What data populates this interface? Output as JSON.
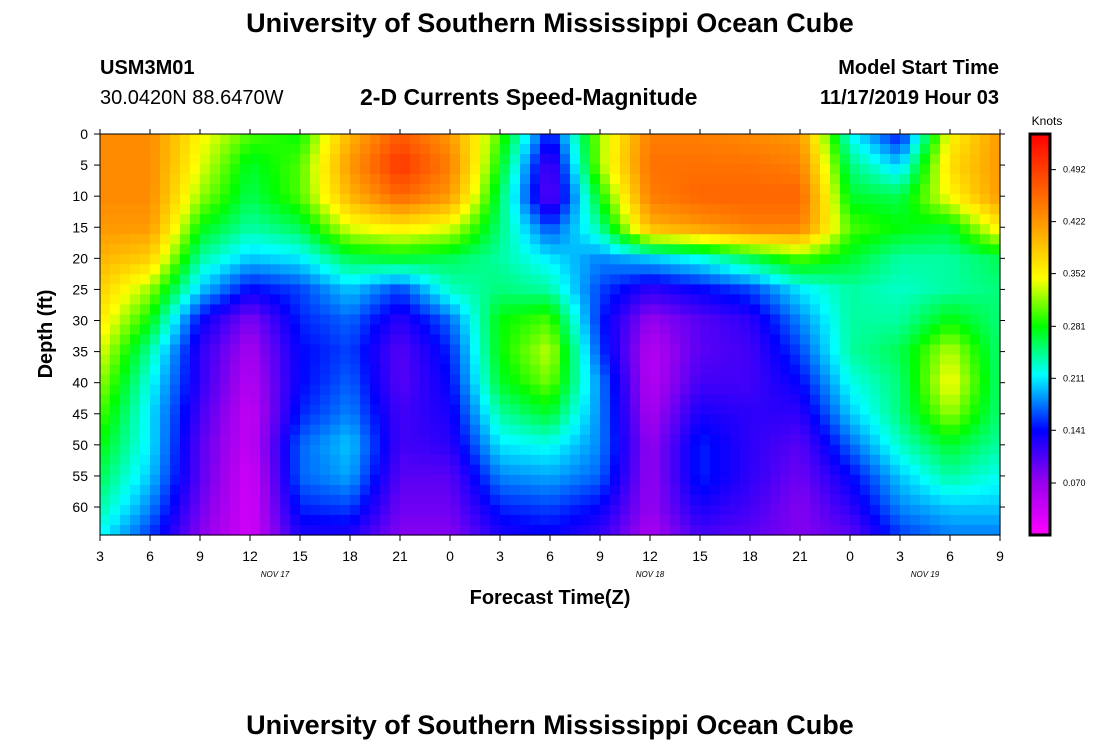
{
  "header": {
    "title": "University of Southern Mississippi Ocean Cube",
    "station_id": "USM3M01",
    "coordinates": "30.0420N 88.6470W",
    "subtitle": "2-D Currents Speed-Magnitude",
    "model_start_label": "Model Start Time",
    "model_start_value": "11/17/2019 Hour 03"
  },
  "footer": {
    "title": "University of Southern Mississippi Ocean Cube"
  },
  "chart_data": {
    "type": "heatmap",
    "title": "2-D Currents Speed-Magnitude",
    "xlabel": "Forecast Time(Z)",
    "ylabel": "Depth (ft)",
    "x_tick_labels": [
      "3",
      "6",
      "9",
      "12",
      "15",
      "18",
      "21",
      "0",
      "3",
      "6",
      "9",
      "12",
      "15",
      "18",
      "21",
      "0",
      "3",
      "6",
      "9"
    ],
    "x_hours_since_start": [
      0,
      3,
      6,
      9,
      12,
      15,
      18,
      21,
      24,
      27,
      30,
      33,
      36,
      39,
      42,
      45,
      48,
      51,
      54
    ],
    "date_labels": [
      {
        "text": "NOV 17",
        "hour": 10.5
      },
      {
        "text": "NOV 18",
        "hour": 33
      },
      {
        "text": "NOV 19",
        "hour": 49.5
      }
    ],
    "y_ticks": [
      0,
      5,
      10,
      15,
      20,
      25,
      30,
      35,
      40,
      45,
      50,
      55,
      60
    ],
    "ylim": [
      0,
      64.5
    ],
    "xlim": [
      0,
      54
    ],
    "colorbar": {
      "unit": "Knots",
      "ticks": [
        "0.492",
        "0.422",
        "0.352",
        "0.281",
        "0.211",
        "0.141",
        "0.070"
      ],
      "tick_values": [
        0.492,
        0.422,
        0.352,
        0.281,
        0.211,
        0.141,
        0.07
      ],
      "range": [
        0.0,
        0.54
      ]
    },
    "speed_grid_knots": {
      "depths_ft": [
        0,
        5,
        10,
        15,
        20,
        25,
        30,
        35,
        40,
        45,
        50,
        55,
        60,
        64
      ],
      "hours": [
        0,
        3,
        6,
        9,
        12,
        15,
        18,
        21,
        24,
        27,
        30,
        33,
        36,
        39,
        42,
        45,
        48,
        51,
        54
      ],
      "rows": [
        [
          0.43,
          0.43,
          0.35,
          0.3,
          0.28,
          0.4,
          0.47,
          0.42,
          0.3,
          0.14,
          0.32,
          0.44,
          0.44,
          0.43,
          0.42,
          0.22,
          0.14,
          0.35,
          0.42
        ],
        [
          0.43,
          0.43,
          0.34,
          0.27,
          0.3,
          0.42,
          0.5,
          0.44,
          0.28,
          0.1,
          0.32,
          0.45,
          0.45,
          0.45,
          0.44,
          0.25,
          0.2,
          0.37,
          0.42
        ],
        [
          0.43,
          0.43,
          0.32,
          0.26,
          0.3,
          0.4,
          0.46,
          0.42,
          0.26,
          0.09,
          0.28,
          0.44,
          0.46,
          0.46,
          0.46,
          0.27,
          0.26,
          0.35,
          0.42
        ],
        [
          0.42,
          0.42,
          0.28,
          0.24,
          0.26,
          0.34,
          0.36,
          0.34,
          0.25,
          0.16,
          0.24,
          0.4,
          0.42,
          0.44,
          0.44,
          0.3,
          0.28,
          0.27,
          0.36
        ],
        [
          0.4,
          0.38,
          0.24,
          0.2,
          0.21,
          0.26,
          0.27,
          0.26,
          0.24,
          0.21,
          0.18,
          0.2,
          0.22,
          0.26,
          0.3,
          0.27,
          0.24,
          0.24,
          0.26
        ],
        [
          0.38,
          0.32,
          0.2,
          0.14,
          0.16,
          0.2,
          0.16,
          0.23,
          0.25,
          0.24,
          0.16,
          0.12,
          0.14,
          0.16,
          0.21,
          0.24,
          0.23,
          0.24,
          0.25
        ],
        [
          0.36,
          0.28,
          0.14,
          0.08,
          0.15,
          0.17,
          0.12,
          0.17,
          0.28,
          0.3,
          0.15,
          0.07,
          0.1,
          0.12,
          0.18,
          0.24,
          0.24,
          0.28,
          0.25
        ],
        [
          0.34,
          0.24,
          0.12,
          0.06,
          0.14,
          0.16,
          0.1,
          0.15,
          0.28,
          0.33,
          0.16,
          0.05,
          0.1,
          0.11,
          0.16,
          0.24,
          0.26,
          0.33,
          0.25
        ],
        [
          0.32,
          0.22,
          0.12,
          0.05,
          0.14,
          0.17,
          0.1,
          0.14,
          0.27,
          0.31,
          0.18,
          0.05,
          0.11,
          0.11,
          0.14,
          0.22,
          0.25,
          0.35,
          0.25
        ],
        [
          0.3,
          0.21,
          0.11,
          0.04,
          0.15,
          0.18,
          0.11,
          0.13,
          0.24,
          0.27,
          0.18,
          0.06,
          0.13,
          0.12,
          0.12,
          0.2,
          0.25,
          0.32,
          0.25
        ],
        [
          0.28,
          0.21,
          0.1,
          0.04,
          0.17,
          0.2,
          0.11,
          0.12,
          0.21,
          0.22,
          0.18,
          0.07,
          0.15,
          0.12,
          0.1,
          0.17,
          0.23,
          0.27,
          0.24
        ],
        [
          0.26,
          0.2,
          0.1,
          0.03,
          0.17,
          0.19,
          0.1,
          0.1,
          0.18,
          0.19,
          0.17,
          0.07,
          0.15,
          0.12,
          0.09,
          0.14,
          0.2,
          0.24,
          0.22
        ],
        [
          0.24,
          0.18,
          0.09,
          0.03,
          0.15,
          0.16,
          0.09,
          0.09,
          0.15,
          0.16,
          0.14,
          0.07,
          0.13,
          0.11,
          0.08,
          0.12,
          0.18,
          0.2,
          0.2
        ],
        [
          0.22,
          0.16,
          0.08,
          0.03,
          0.13,
          0.13,
          0.08,
          0.08,
          0.13,
          0.14,
          0.12,
          0.06,
          0.11,
          0.1,
          0.08,
          0.1,
          0.16,
          0.18,
          0.18
        ]
      ]
    }
  }
}
